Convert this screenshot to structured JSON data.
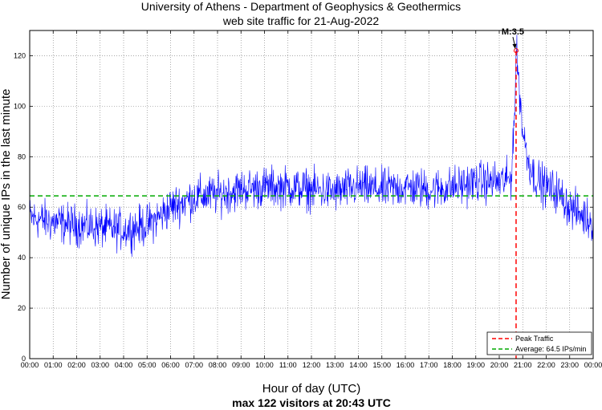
{
  "chart_data": {
    "type": "line",
    "title_line1": "University of Athens - Department of Geophysics & Geothermics",
    "title_line2": "web site traffic for 21-Aug-2022",
    "xlabel": "Hour of day (UTC)",
    "ylabel": "Number of unique IPs in the last minute",
    "subtitle": "max 122 visitors at 20:43 UTC",
    "xlim_minutes": [
      0,
      1440
    ],
    "ylim": [
      0,
      130
    ],
    "yticks": [
      0,
      20,
      40,
      60,
      80,
      100,
      120
    ],
    "xtick_labels": [
      "00:00",
      "01:00",
      "02:00",
      "03:00",
      "04:00",
      "05:00",
      "06:00",
      "07:00",
      "08:00",
      "09:00",
      "10:00",
      "11:00",
      "12:00",
      "13:00",
      "14:00",
      "15:00",
      "16:00",
      "17:00",
      "18:00",
      "19:00",
      "20:00",
      "21:00",
      "22:00",
      "23:00",
      "00:00"
    ],
    "grid": true,
    "series": [
      {
        "name": "Traffic",
        "color": "#0000ff",
        "baseline_profile": {
          "minutes": [
            0,
            60,
            120,
            180,
            240,
            300,
            330,
            360,
            420,
            480,
            540,
            600,
            660,
            720,
            780,
            840,
            900,
            960,
            1020,
            1080,
            1140,
            1200,
            1230,
            1240,
            1243,
            1250,
            1260,
            1275,
            1290,
            1320,
            1350,
            1380,
            1410,
            1440
          ],
          "values": [
            56,
            54,
            53,
            52,
            51,
            53,
            56,
            60,
            64,
            65,
            67,
            68,
            68,
            67,
            66,
            68,
            67,
            68,
            67,
            68,
            70,
            70,
            71,
            100,
            122,
            110,
            90,
            78,
            72,
            68,
            66,
            60,
            57,
            54
          ]
        },
        "noise_amplitude": 5
      }
    ],
    "annotation": {
      "label": "M:3.5",
      "minute": 1243,
      "value": 122
    },
    "peak": {
      "minute": 1243,
      "value": 122,
      "label": "Peak Traffic",
      "color": "#ff0000"
    },
    "average": {
      "value": 64.5,
      "label": "Average: 64.5 IPs/min",
      "color": "#00aa00"
    },
    "legend_position": "bottom-right"
  }
}
